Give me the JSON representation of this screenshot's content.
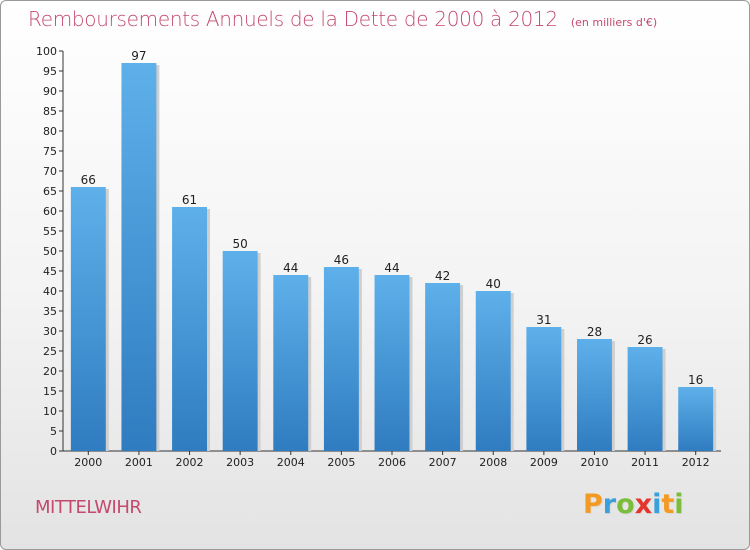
{
  "header": {
    "title": "Remboursements Annuels de la Dette de 2000 à 2012",
    "subtitle": "(en milliers d'€)"
  },
  "footer": {
    "commune": "MITTELWIHR",
    "logo_text": "Proxiti"
  },
  "colors": {
    "title": "#c4496e",
    "bar_top": "#5eb0ea",
    "bar_bottom": "#2f7cc0",
    "logo_letters": [
      "#f29a22",
      "#3aa0dc",
      "#7bbd3b",
      "#e3352d",
      "#3aa0dc",
      "#f29a22",
      "#7bbd3b"
    ]
  },
  "chart_data": {
    "type": "bar",
    "title": "Remboursements Annuels de la Dette de 2000 à 2012",
    "subtitle": "(en milliers d'€)",
    "categories": [
      "2000",
      "2001",
      "2002",
      "2003",
      "2004",
      "2005",
      "2006",
      "2007",
      "2008",
      "2009",
      "2010",
      "2011",
      "2012"
    ],
    "values": [
      66,
      97,
      61,
      50,
      44,
      46,
      44,
      42,
      40,
      31,
      28,
      26,
      16
    ],
    "ylim": [
      0,
      100
    ],
    "yticks": [
      0,
      5,
      10,
      15,
      20,
      25,
      30,
      35,
      40,
      45,
      50,
      55,
      60,
      65,
      70,
      75,
      80,
      85,
      90,
      95,
      100
    ],
    "grid": false,
    "data_labels": true
  }
}
